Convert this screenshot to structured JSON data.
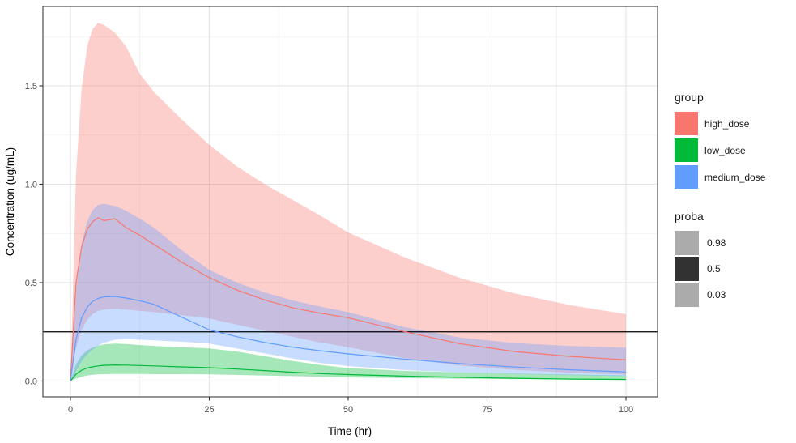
{
  "chart_data": {
    "type": "area",
    "title": "",
    "xlabel": "Time (hr)",
    "ylabel": "Concentration (ug/mL)",
    "x_ticks": {
      "values": [
        0,
        25,
        50,
        75,
        100
      ],
      "labels": [
        "0",
        "25",
        "50",
        "75",
        "100"
      ]
    },
    "x_minor": [
      12.5,
      37.5,
      62.5,
      87.5
    ],
    "y_ticks": {
      "values": [
        0,
        0.5,
        1.0,
        1.5
      ],
      "labels": [
        "0.0",
        "0.5",
        "1.0",
        "1.5"
      ]
    },
    "y_minor": [
      0.25,
      0.75,
      1.25,
      1.75
    ],
    "xlim": [
      -5,
      105.5
    ],
    "ylim": [
      -0.08,
      1.9
    ],
    "grid": true,
    "legend_position": "right",
    "reference_line": {
      "y": 0.25,
      "color": "#000000"
    },
    "quantile_probs": [
      0.03,
      0.5,
      0.98
    ],
    "x": [
      0,
      1,
      2,
      3,
      4,
      5,
      6,
      8,
      10,
      12.5,
      15,
      20,
      25,
      30,
      35,
      40,
      45,
      50,
      60,
      70,
      80,
      90,
      100
    ],
    "series": [
      {
        "name": "high_dose",
        "color": "#F8766D",
        "band_alpha": 0.35,
        "upper": [
          0,
          1.05,
          1.48,
          1.7,
          1.79,
          1.82,
          1.81,
          1.77,
          1.7,
          1.56,
          1.47,
          1.33,
          1.2,
          1.09,
          1.0,
          0.92,
          0.84,
          0.755,
          0.63,
          0.525,
          0.445,
          0.385,
          0.34
        ],
        "median": [
          0,
          0.5,
          0.68,
          0.77,
          0.81,
          0.83,
          0.815,
          0.825,
          0.78,
          0.74,
          0.695,
          0.605,
          0.525,
          0.462,
          0.412,
          0.372,
          0.345,
          0.322,
          0.252,
          0.19,
          0.15,
          0.125,
          0.108
        ],
        "lower": [
          0,
          0.17,
          0.26,
          0.31,
          0.34,
          0.357,
          0.363,
          0.368,
          0.363,
          0.357,
          0.35,
          0.335,
          0.318,
          0.286,
          0.255,
          0.225,
          0.196,
          0.172,
          0.117,
          0.079,
          0.057,
          0.042,
          0.033
        ]
      },
      {
        "name": "low_dose",
        "color": "#00BA38",
        "band_alpha": 0.35,
        "upper": [
          0,
          0.085,
          0.13,
          0.155,
          0.17,
          0.18,
          0.186,
          0.19,
          0.188,
          0.183,
          0.178,
          0.172,
          0.166,
          0.15,
          0.126,
          0.102,
          0.082,
          0.066,
          0.052,
          0.044,
          0.038,
          0.033,
          0.029
        ],
        "median": [
          0,
          0.035,
          0.055,
          0.066,
          0.073,
          0.077,
          0.08,
          0.082,
          0.081,
          0.079,
          0.077,
          0.072,
          0.068,
          0.061,
          0.053,
          0.045,
          0.038,
          0.033,
          0.025,
          0.019,
          0.014,
          0.01,
          0.008
        ],
        "lower": [
          0,
          0.012,
          0.022,
          0.028,
          0.032,
          0.034,
          0.035,
          0.036,
          0.036,
          0.036,
          0.035,
          0.035,
          0.034,
          0.031,
          0.028,
          0.025,
          0.022,
          0.018,
          0.015,
          0.012,
          0.01,
          0.009,
          0.008
        ]
      },
      {
        "name": "medium_dose",
        "color": "#619CFF",
        "band_alpha": 0.35,
        "upper": [
          0,
          0.46,
          0.7,
          0.81,
          0.87,
          0.895,
          0.9,
          0.89,
          0.865,
          0.825,
          0.78,
          0.665,
          0.565,
          0.5,
          0.45,
          0.41,
          0.378,
          0.35,
          0.275,
          0.222,
          0.193,
          0.178,
          0.17
        ],
        "median": [
          0,
          0.21,
          0.32,
          0.375,
          0.405,
          0.42,
          0.428,
          0.43,
          0.422,
          0.408,
          0.39,
          0.325,
          0.26,
          0.225,
          0.196,
          0.172,
          0.154,
          0.138,
          0.112,
          0.089,
          0.071,
          0.057,
          0.046
        ],
        "lower": [
          0,
          0.05,
          0.1,
          0.135,
          0.16,
          0.18,
          0.195,
          0.21,
          0.213,
          0.21,
          0.207,
          0.2,
          0.19,
          0.165,
          0.14,
          0.115,
          0.092,
          0.076,
          0.056,
          0.044,
          0.036,
          0.03,
          0.025
        ]
      }
    ]
  },
  "legend": {
    "group": {
      "title": "group",
      "items": [
        {
          "label": "high_dose",
          "color": "#F8766D"
        },
        {
          "label": "low_dose",
          "color": "#00BA38"
        },
        {
          "label": "medium_dose",
          "color": "#619CFF"
        }
      ]
    },
    "proba": {
      "title": "proba",
      "items": [
        {
          "label": "0.98",
          "color": "#ababab"
        },
        {
          "label": "0.5",
          "color": "#323232"
        },
        {
          "label": "0.03",
          "color": "#ababab"
        }
      ]
    }
  },
  "colors": {
    "background": "#ffffff",
    "grid_major": "#e2e2e2",
    "grid_minor": "#efefef",
    "panel_border": "#4d4d4d",
    "tick": "#333333",
    "tick_label": "#4d4d4d",
    "axis_title": "#000000"
  }
}
